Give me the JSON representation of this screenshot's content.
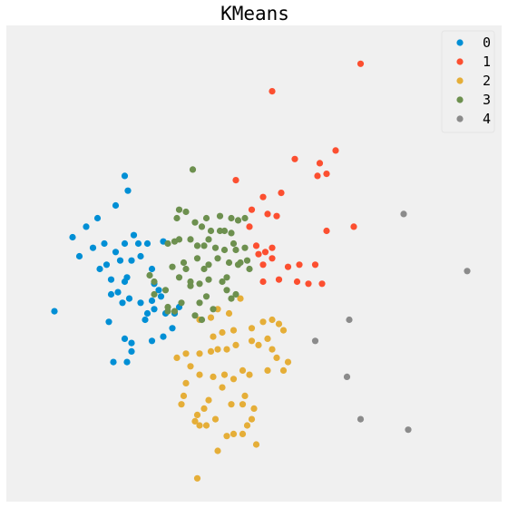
{
  "chart_data": {
    "type": "scatter",
    "title": "KMeans",
    "xlabel": "",
    "ylabel": "",
    "xlim": [
      0,
      100
    ],
    "ylim": [
      0,
      100
    ],
    "grid": false,
    "axes_visible": false,
    "legend_position": "top-right",
    "series": [
      {
        "name": "0",
        "color": "#008fd5",
        "points": [
          [
            20.5,
            70
          ],
          [
            21.2,
            66.5
          ],
          [
            18.5,
            63
          ],
          [
            14.5,
            60
          ],
          [
            12,
            58
          ],
          [
            9,
            55.5
          ],
          [
            22.5,
            56
          ],
          [
            20.5,
            54
          ],
          [
            16,
            54
          ],
          [
            13.5,
            53
          ],
          [
            18.5,
            52
          ],
          [
            23.5,
            54
          ],
          [
            25.5,
            54
          ],
          [
            29,
            54.5
          ],
          [
            24,
            51
          ],
          [
            22,
            50
          ],
          [
            19.5,
            50
          ],
          [
            16.5,
            49
          ],
          [
            10.5,
            51
          ],
          [
            15,
            48
          ],
          [
            26.5,
            48
          ],
          [
            21,
            46
          ],
          [
            17.5,
            45.5
          ],
          [
            20.5,
            45
          ],
          [
            27,
            44.5
          ],
          [
            28,
            43
          ],
          [
            17.5,
            42
          ],
          [
            28.5,
            41.5
          ],
          [
            26.5,
            40.5
          ],
          [
            24,
            40
          ],
          [
            21.5,
            41
          ],
          [
            20,
            40
          ],
          [
            19,
            42.5
          ],
          [
            27,
            38.5
          ],
          [
            25.5,
            37.5
          ],
          [
            29.5,
            37.5
          ],
          [
            31.5,
            37.5
          ],
          [
            32.5,
            39
          ],
          [
            25,
            36
          ],
          [
            31,
            34
          ],
          [
            29,
            32
          ],
          [
            22,
            30.5
          ],
          [
            17,
            35.5
          ],
          [
            5,
            38
          ],
          [
            20.5,
            31.5
          ],
          [
            26.5,
            31
          ],
          [
            22,
            28.5
          ],
          [
            21,
            26
          ],
          [
            18,
            26
          ]
        ]
      },
      {
        "name": "1",
        "color": "#fc4f30",
        "points": [
          [
            72.5,
            96.5
          ],
          [
            53,
            90
          ],
          [
            67,
            76
          ],
          [
            58,
            74
          ],
          [
            63.5,
            73
          ],
          [
            65,
            70.5
          ],
          [
            63,
            70
          ],
          [
            45,
            69
          ],
          [
            55,
            66
          ],
          [
            51,
            65
          ],
          [
            48.5,
            62
          ],
          [
            52,
            61
          ],
          [
            54,
            60.5
          ],
          [
            48,
            58
          ],
          [
            71,
            58
          ],
          [
            65,
            57
          ],
          [
            49.5,
            53.5
          ],
          [
            53,
            53
          ],
          [
            51.5,
            52
          ],
          [
            50,
            51.5
          ],
          [
            51,
            49
          ],
          [
            53,
            50.5
          ],
          [
            56.5,
            48.5
          ],
          [
            59,
            49
          ],
          [
            62.5,
            49
          ],
          [
            58.5,
            45
          ],
          [
            61,
            44.5
          ],
          [
            64,
            44.5
          ],
          [
            54.5,
            45.5
          ],
          [
            51,
            45
          ]
        ]
      },
      {
        "name": "2",
        "color": "#e5ae38",
        "points": [
          [
            46,
            41
          ],
          [
            43.5,
            37.5
          ],
          [
            41,
            38.5
          ],
          [
            39.5,
            36.5
          ],
          [
            37,
            36
          ],
          [
            44.5,
            33.5
          ],
          [
            42,
            33
          ],
          [
            40,
            32
          ],
          [
            51,
            35.5
          ],
          [
            48.5,
            34
          ],
          [
            48.5,
            31
          ],
          [
            53,
            36
          ],
          [
            54.5,
            35
          ],
          [
            55.5,
            33.5
          ],
          [
            52,
            31.5
          ],
          [
            50,
            30
          ],
          [
            45,
            30
          ],
          [
            43,
            29
          ],
          [
            41,
            29
          ],
          [
            39.5,
            28.5
          ],
          [
            37,
            28
          ],
          [
            34,
            28
          ],
          [
            32,
            27
          ],
          [
            35,
            25
          ],
          [
            37,
            23
          ],
          [
            40,
            22.5
          ],
          [
            42.5,
            23
          ],
          [
            44.5,
            22
          ],
          [
            46.5,
            24
          ],
          [
            48,
            23
          ],
          [
            53,
            29
          ],
          [
            54,
            27
          ],
          [
            56.5,
            26
          ],
          [
            55.5,
            24
          ],
          [
            52,
            24
          ],
          [
            42,
            20
          ],
          [
            39,
            17
          ],
          [
            47,
            18
          ],
          [
            49,
            15
          ],
          [
            38,
            15
          ],
          [
            36,
            12
          ],
          [
            37,
            11
          ],
          [
            44.5,
            9
          ],
          [
            46.5,
            9
          ],
          [
            49.5,
            6.5
          ],
          [
            41,
            5
          ],
          [
            34,
            21
          ],
          [
            33.5,
            18
          ],
          [
            33,
            16
          ],
          [
            36.5,
            13.5
          ],
          [
            40.5,
            12.5
          ],
          [
            43,
            8.5
          ],
          [
            48.5,
            12.5
          ],
          [
            47.5,
            11
          ],
          [
            44,
            16
          ],
          [
            38.5,
            11
          ],
          [
            46.5,
            16
          ],
          [
            36.5,
            -1.5
          ]
        ]
      },
      {
        "name": "3",
        "color": "#6d904f",
        "points": [
          [
            35.5,
            71.5
          ],
          [
            32.5,
            62
          ],
          [
            34,
            61.5
          ],
          [
            32,
            60
          ],
          [
            38.5,
            60
          ],
          [
            41.5,
            60.5
          ],
          [
            44,
            60
          ],
          [
            45.5,
            59.5
          ],
          [
            47,
            60
          ],
          [
            36,
            59
          ],
          [
            37.5,
            58
          ],
          [
            39.5,
            57
          ],
          [
            41.5,
            57
          ],
          [
            42.5,
            57
          ],
          [
            44,
            56.5
          ],
          [
            39,
            55
          ],
          [
            35,
            55
          ],
          [
            32.5,
            55
          ],
          [
            30,
            54
          ],
          [
            31.5,
            54.5
          ],
          [
            36.5,
            53.5
          ],
          [
            38,
            53.5
          ],
          [
            40.5,
            53
          ],
          [
            42.5,
            52.5
          ],
          [
            45,
            52.5
          ],
          [
            47,
            53
          ],
          [
            44.5,
            54
          ],
          [
            43.5,
            49.5
          ],
          [
            41,
            50.5
          ],
          [
            39,
            49
          ],
          [
            36.5,
            50.5
          ],
          [
            33.5,
            49.5
          ],
          [
            34,
            48
          ],
          [
            31,
            48.5
          ],
          [
            32.5,
            46
          ],
          [
            35,
            45
          ],
          [
            35,
            44
          ],
          [
            37,
            44.5
          ],
          [
            38,
            48
          ],
          [
            39,
            45.5
          ],
          [
            43,
            46
          ],
          [
            46,
            49.5
          ],
          [
            47.5,
            50
          ],
          [
            45.5,
            49
          ],
          [
            48,
            48
          ],
          [
            42,
            45
          ],
          [
            43,
            43
          ],
          [
            45,
            42
          ],
          [
            44,
            41
          ],
          [
            37,
            40
          ],
          [
            38.5,
            41.5
          ],
          [
            40,
            38.5
          ],
          [
            36,
            37
          ],
          [
            37.5,
            36
          ],
          [
            33,
            40
          ],
          [
            30,
            39
          ],
          [
            29.5,
            43
          ],
          [
            27,
            45
          ],
          [
            26,
            46.5
          ],
          [
            27,
            42
          ],
          [
            30,
            38
          ],
          [
            31.5,
            38
          ]
        ]
      },
      {
        "name": "4",
        "color": "#8b8b8b",
        "points": [
          [
            82,
            61
          ],
          [
            96,
            47.5
          ],
          [
            70,
            36
          ],
          [
            62.5,
            31
          ],
          [
            69.5,
            22.5
          ],
          [
            72.5,
            12.5
          ],
          [
            83,
            10
          ]
        ]
      }
    ]
  }
}
